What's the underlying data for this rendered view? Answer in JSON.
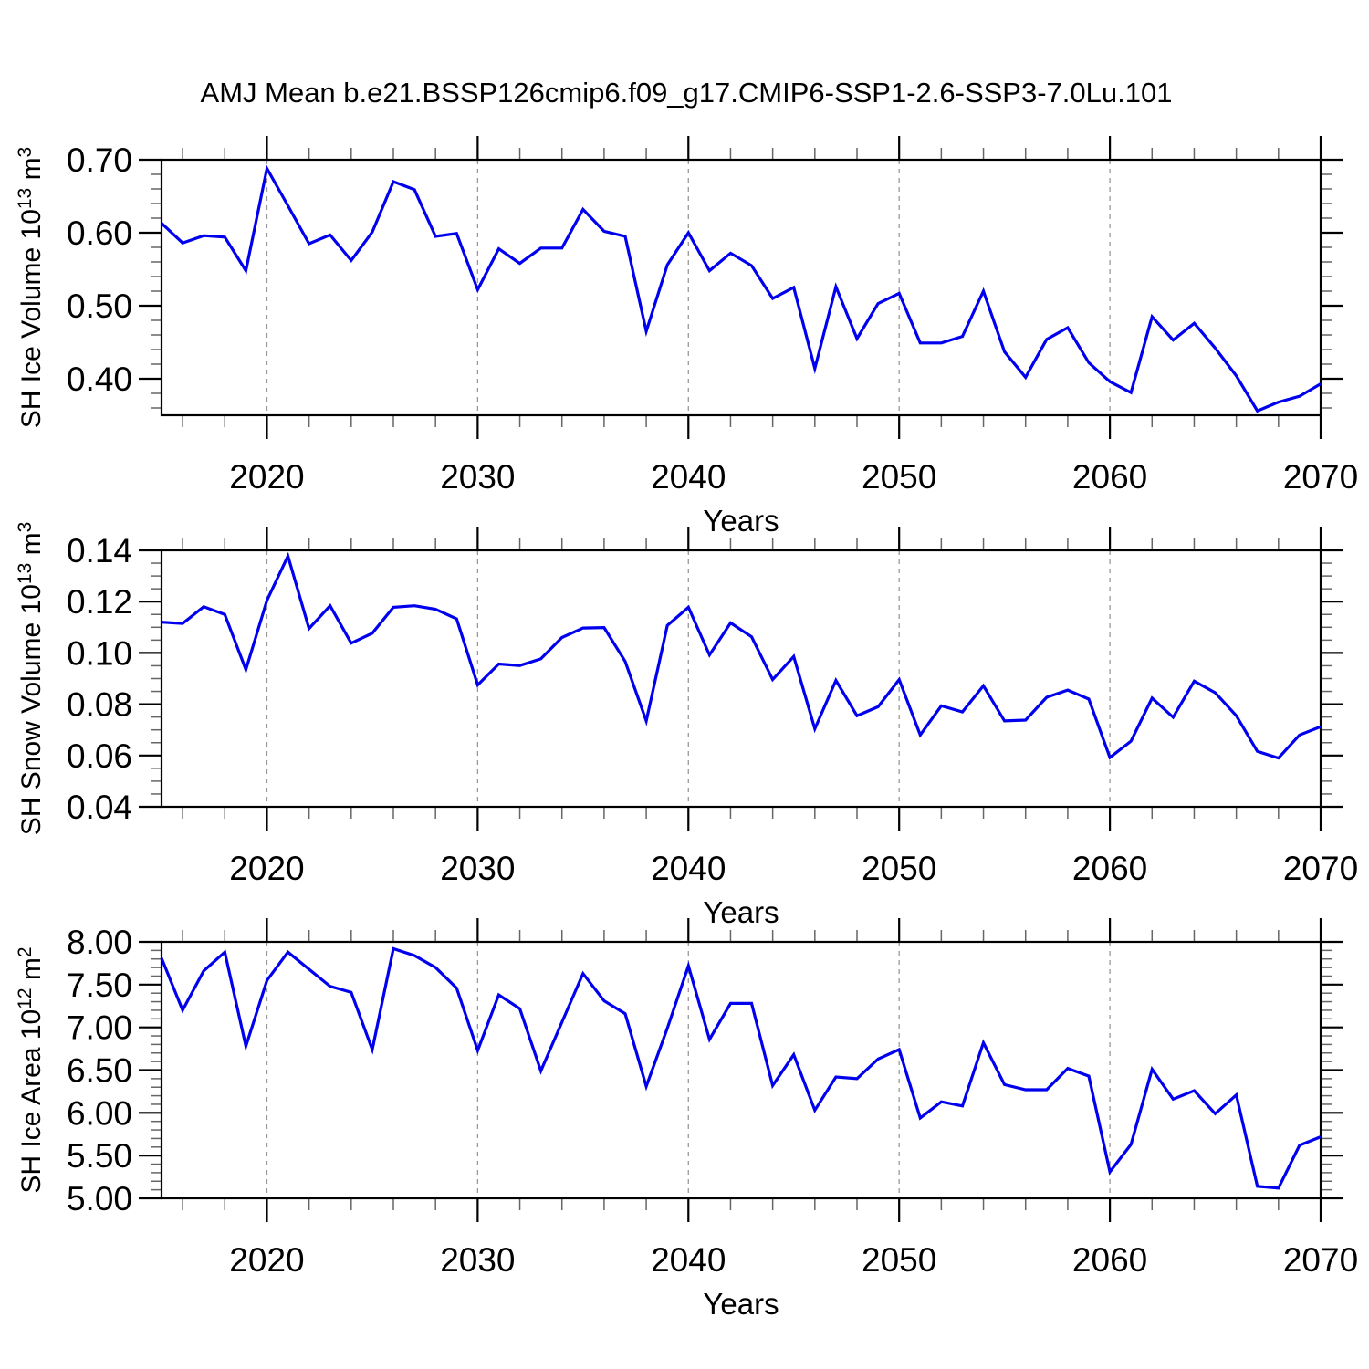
{
  "title": "AMJ Mean b.e21.BSSP126cmip6.f09_g17.CMIP6-SSP1-2.6-SSP3-7.0Lu.101",
  "line_color": "#0000EE",
  "grid_color": "#999999",
  "frame_color": "#000000",
  "minor_tick_color": "#666666",
  "x_axis_label": "Years",
  "chart_data": [
    {
      "type": "line",
      "ylabel": "SH Ice Volume 10^13 m^3",
      "ylabel_parts": [
        {
          "t": "SH Ice Volume 10"
        },
        {
          "t": "13",
          "sup": true
        },
        {
          "t": " m"
        },
        {
          "t": "3",
          "sup": true
        }
      ],
      "xlabel": "Years",
      "x_start": 2015,
      "x_end": 2070,
      "x_step": 1,
      "ylim": [
        0.35,
        0.7
      ],
      "ytick_values": [
        0.4,
        0.5,
        0.6,
        0.7
      ],
      "ytick_labels": [
        "0.40",
        "0.50",
        "0.60",
        "0.70"
      ],
      "ytick_minor_step": 0.02,
      "xtick_values": [
        2020,
        2030,
        2040,
        2050,
        2060,
        2070
      ],
      "xtick_labels": [
        "2020",
        "2030",
        "2040",
        "2050",
        "2060",
        "2070"
      ],
      "xtick_minor_start": 2016,
      "xtick_minor_step": 2,
      "grid_x_values": [
        2020,
        2030,
        2040,
        2050,
        2060
      ],
      "values": [
        0.613,
        0.586,
        0.596,
        0.594,
        0.548,
        0.688,
        0.637,
        0.585,
        0.597,
        0.562,
        0.601,
        0.67,
        0.659,
        0.595,
        0.599,
        0.522,
        0.578,
        0.558,
        0.579,
        0.579,
        0.632,
        0.602,
        0.595,
        0.465,
        0.556,
        0.6,
        0.548,
        0.572,
        0.555,
        0.51,
        0.525,
        0.414,
        0.526,
        0.455,
        0.503,
        0.517,
        0.449,
        0.449,
        0.458,
        0.52,
        0.437,
        0.402,
        0.454,
        0.47,
        0.422,
        0.396,
        0.381,
        0.485,
        0.453,
        0.476,
        0.442,
        0.404,
        0.356,
        0.368,
        0.376,
        0.393
      ]
    },
    {
      "type": "line",
      "ylabel": "SH Snow Volume 10^13 m^3",
      "ylabel_parts": [
        {
          "t": "SH Snow Volume 10"
        },
        {
          "t": "13",
          "sup": true
        },
        {
          "t": " m"
        },
        {
          "t": "3",
          "sup": true
        }
      ],
      "xlabel": "Years",
      "x_start": 2015,
      "x_end": 2070,
      "x_step": 1,
      "ylim": [
        0.04,
        0.14
      ],
      "ytick_values": [
        0.04,
        0.06,
        0.08,
        0.1,
        0.12,
        0.14
      ],
      "ytick_labels": [
        "0.04",
        "0.06",
        "0.08",
        "0.10",
        "0.12",
        "0.14"
      ],
      "ytick_minor_step": 0.005,
      "xtick_values": [
        2020,
        2030,
        2040,
        2050,
        2060,
        2070
      ],
      "xtick_labels": [
        "2020",
        "2030",
        "2040",
        "2050",
        "2060",
        "2070"
      ],
      "xtick_minor_start": 2016,
      "xtick_minor_step": 2,
      "grid_x_values": [
        2020,
        2030,
        2040,
        2050,
        2060
      ],
      "values": [
        0.112,
        0.1115,
        0.118,
        0.115,
        0.0935,
        0.1205,
        0.1378,
        0.1095,
        0.1184,
        0.1038,
        0.1077,
        0.1178,
        0.1184,
        0.117,
        0.1133,
        0.0875,
        0.0957,
        0.0951,
        0.0977,
        0.106,
        0.1097,
        0.1099,
        0.0967,
        0.0735,
        0.1107,
        0.1178,
        0.0992,
        0.1117,
        0.1063,
        0.0896,
        0.0986,
        0.0704,
        0.0893,
        0.0755,
        0.079,
        0.0896,
        0.068,
        0.0794,
        0.077,
        0.0872,
        0.0735,
        0.0738,
        0.0827,
        0.0855,
        0.082,
        0.0592,
        0.0656,
        0.0824,
        0.0749,
        0.089,
        0.0845,
        0.0755,
        0.0616,
        0.059,
        0.068,
        0.0712
      ]
    },
    {
      "type": "line",
      "ylabel": "SH Ice Area 10^12 m^2",
      "ylabel_parts": [
        {
          "t": "SH Ice Area 10"
        },
        {
          "t": "12",
          "sup": true
        },
        {
          "t": " m"
        },
        {
          "t": "2",
          "sup": true
        }
      ],
      "xlabel": "Years",
      "x_start": 2015,
      "x_end": 2070,
      "x_step": 1,
      "ylim": [
        5.0,
        8.0
      ],
      "ytick_values": [
        5.0,
        5.5,
        6.0,
        6.5,
        7.0,
        7.5,
        8.0
      ],
      "ytick_labels": [
        "5.00",
        "5.50",
        "6.00",
        "6.50",
        "7.00",
        "7.50",
        "8.00"
      ],
      "ytick_minor_step": 0.1,
      "xtick_values": [
        2020,
        2030,
        2040,
        2050,
        2060,
        2070
      ],
      "xtick_labels": [
        "2020",
        "2030",
        "2040",
        "2050",
        "2060",
        "2070"
      ],
      "xtick_minor_start": 2016,
      "xtick_minor_step": 2,
      "grid_x_values": [
        2020,
        2030,
        2040,
        2050,
        2060
      ],
      "values": [
        7.81,
        7.2,
        7.66,
        7.88,
        6.78,
        7.55,
        7.88,
        7.68,
        7.48,
        7.41,
        6.74,
        7.92,
        7.84,
        7.7,
        7.46,
        6.73,
        7.38,
        7.22,
        6.49,
        7.06,
        7.63,
        7.31,
        7.16,
        6.31,
        6.99,
        7.72,
        6.86,
        7.28,
        7.28,
        6.32,
        6.68,
        6.03,
        6.42,
        6.4,
        6.63,
        6.74,
        5.94,
        6.13,
        6.08,
        6.82,
        6.33,
        6.27,
        6.27,
        6.52,
        6.43,
        5.31,
        5.63,
        6.51,
        6.16,
        6.26,
        5.99,
        6.21,
        5.14,
        5.12,
        5.62,
        5.72
      ]
    }
  ]
}
